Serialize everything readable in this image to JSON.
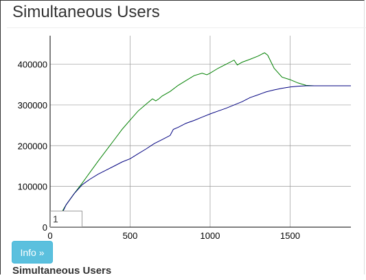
{
  "page": {
    "title": "Simultaneous Users",
    "info_button_label": "Info »",
    "caption": "Simultaneous Users",
    "overlay_value": "1"
  },
  "chart_data": {
    "type": "line",
    "title": "",
    "xlabel": "",
    "ylabel": "",
    "xlim": [
      0,
      1880
    ],
    "ylim": [
      0,
      470000
    ],
    "x_ticks": [
      0,
      500,
      1000,
      1500
    ],
    "y_ticks": [
      0,
      100000,
      200000,
      300000,
      400000
    ],
    "x_tick_labels": [
      "0",
      "500",
      "1000",
      "1500"
    ],
    "y_tick_labels": [
      "0",
      "100000",
      "200000",
      "300000",
      "400000"
    ],
    "grid": true,
    "legend": "none",
    "series": [
      {
        "color": "#008000",
        "x": [
          70,
          100,
          150,
          200,
          250,
          300,
          350,
          400,
          450,
          500,
          550,
          600,
          640,
          660,
          680,
          700,
          750,
          800,
          850,
          900,
          950,
          980,
          1000,
          1050,
          1100,
          1150,
          1170,
          1200,
          1250,
          1300,
          1340,
          1360,
          1400,
          1450,
          1500,
          1550,
          1600,
          1650,
          1700,
          1750,
          1800,
          1880
        ],
        "y": [
          35000,
          55000,
          82000,
          108000,
          135000,
          162000,
          188000,
          214000,
          240000,
          263000,
          285000,
          302000,
          315000,
          310000,
          315000,
          322000,
          333000,
          348000,
          360000,
          372000,
          378000,
          374000,
          378000,
          390000,
          400000,
          410000,
          398000,
          405000,
          412000,
          420000,
          428000,
          422000,
          390000,
          368000,
          362000,
          354000,
          348000,
          347000,
          347000,
          347000,
          347000,
          347000
        ]
      },
      {
        "color": "#000080",
        "x": [
          70,
          100,
          150,
          200,
          250,
          300,
          350,
          400,
          450,
          500,
          550,
          600,
          650,
          700,
          750,
          770,
          800,
          850,
          900,
          950,
          1000,
          1050,
          1100,
          1150,
          1200,
          1250,
          1300,
          1350,
          1400,
          1450,
          1500,
          1550,
          1600,
          1650,
          1700,
          1750,
          1800,
          1880
        ],
        "y": [
          30000,
          55000,
          82000,
          104000,
          118000,
          130000,
          140000,
          150000,
          160000,
          168000,
          180000,
          192000,
          205000,
          215000,
          225000,
          240000,
          245000,
          255000,
          262000,
          270000,
          278000,
          285000,
          292000,
          300000,
          308000,
          318000,
          325000,
          332000,
          337000,
          341000,
          344000,
          346000,
          347000,
          347000,
          347000,
          347000,
          347000,
          347000
        ]
      }
    ]
  }
}
